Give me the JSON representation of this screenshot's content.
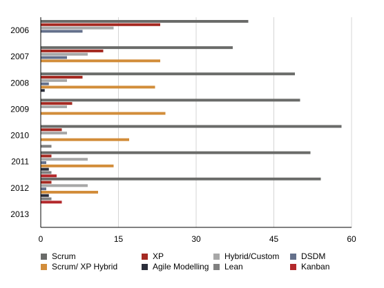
{
  "chart_data": {
    "type": "bar",
    "orientation": "horizontal",
    "title": "",
    "xlabel": "",
    "ylabel": "",
    "xlim": [
      0,
      60
    ],
    "x_ticks": [
      "0",
      "15",
      "30",
      "45",
      "60"
    ],
    "grid": "vertical",
    "legend_position": "bottom",
    "categories": [
      "2006",
      "2007",
      "2008",
      "2009",
      "2010",
      "2011",
      "2012",
      "2013"
    ],
    "series": [
      {
        "name": "Scrum",
        "color": "#6a6b69",
        "values": [
          40,
          37,
          49,
          50,
          58,
          52,
          54,
          0
        ]
      },
      {
        "name": "XP",
        "color": "#a52a22",
        "values": [
          23,
          12,
          8,
          6,
          4,
          2,
          2,
          0
        ]
      },
      {
        "name": "Hybrid/Custom",
        "color": "#a7a7a7",
        "values": [
          14,
          9,
          5,
          5,
          5,
          9,
          9,
          0
        ]
      },
      {
        "name": "DSDM",
        "color": "#64708b",
        "values": [
          8,
          5,
          1.5,
          0,
          0,
          1,
          1,
          0
        ]
      },
      {
        "name": "Scrum/ XP Hybrid",
        "color": "#d28d3a",
        "values": [
          0,
          23,
          22,
          24,
          17,
          14,
          11,
          0
        ]
      },
      {
        "name": "Agile Modelling",
        "color": "#2b2e3a",
        "values": [
          0,
          0,
          0.7,
          0,
          0,
          1.5,
          1.5,
          0
        ]
      },
      {
        "name": "Lean",
        "color": "#808080",
        "values": [
          0,
          0,
          0,
          0,
          2,
          2,
          2,
          0
        ]
      },
      {
        "name": "Kanban",
        "color": "#b3282b",
        "values": [
          0,
          0,
          0,
          0,
          0,
          3,
          4,
          0
        ]
      }
    ]
  }
}
